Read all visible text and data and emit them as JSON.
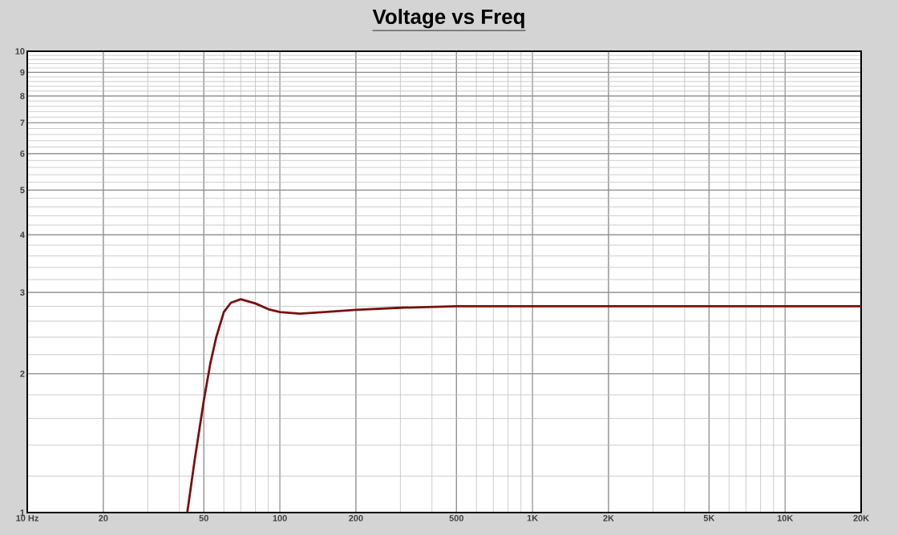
{
  "chart_data": {
    "type": "line",
    "title": "Voltage vs Freq",
    "log": "xy",
    "grid": true,
    "marker": "none",
    "line_style": "solid",
    "x": [
      43,
      46,
      50,
      53,
      56,
      60,
      64,
      70,
      80,
      90,
      100,
      120,
      150,
      200,
      300,
      500,
      1000,
      20000
    ],
    "series": [
      {
        "color": "#7a1010",
        "values": [
          1,
          1.3,
          1.75,
          2.1,
          2.4,
          2.72,
          2.85,
          2.9,
          2.84,
          2.76,
          2.72,
          2.7,
          2.72,
          2.75,
          2.78,
          2.8,
          2.8,
          2.8
        ]
      }
    ],
    "xlim": [
      10,
      20000
    ],
    "ylim": [
      1,
      10
    ],
    "xticks": [
      {
        "value": 10,
        "label": "10 Hz"
      },
      20,
      50,
      100,
      200,
      500,
      {
        "value": 1000,
        "label": "1K"
      },
      {
        "value": 2000,
        "label": "2K"
      },
      {
        "value": 5000,
        "label": "5K"
      },
      {
        "value": 10000,
        "label": "10K"
      },
      {
        "value": 20000,
        "label": "20K"
      }
    ],
    "yticks": [
      1,
      2,
      3,
      4,
      5,
      6,
      7,
      8,
      9,
      10
    ]
  }
}
